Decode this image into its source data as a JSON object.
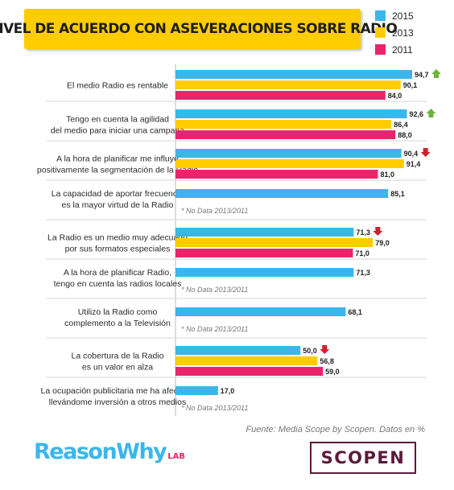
{
  "title": "NIVEL DE ACUERDO CON ASEVERACIONES SOBRE RADIO",
  "legend": [
    {
      "label": "2015",
      "color": "#3BB6EA"
    },
    {
      "label": "2013",
      "color": "#FFCC00"
    },
    {
      "label": "2011",
      "color": "#E8256A"
    }
  ],
  "source": "Fuente: Media Scope by Scopen. Datos en %",
  "no_data_note": "* No Data 2013/2011",
  "logos": {
    "reasonwhy": "ReasonWhy",
    "reasonwhy_sub": "LAB",
    "scopen": "SCOPEN"
  },
  "chart_data": {
    "type": "bar",
    "orientation": "horizontal",
    "title": "NIVEL DE ACUERDO CON ASEVERACIONES SOBRE RADIO",
    "xlim": [
      0,
      100
    ],
    "categories": [
      [
        "El medio Radio es rentable"
      ],
      [
        "Tengo en cuenta la agilidad",
        "del medio para iniciar una campaña"
      ],
      [
        "A la hora de planificar me influye",
        "positivamente la segmentación de la Radio"
      ],
      [
        "La capacidad de aportar frecuencia",
        "es la mayor virtud de la Radio"
      ],
      [
        "La Radio es un medio muy adecuado",
        "por sus formatos especiales"
      ],
      [
        "A la hora de planificar Radio,",
        "tengo en cuenta las radios locales"
      ],
      [
        "Utilizo la Radio como",
        "complemento a la Televisión"
      ],
      [
        "La cobertura de la Radio",
        "es un valor en alza"
      ],
      [
        "La ocupación publicitaria me ha afectado",
        "llevándome inversión a otros medios"
      ]
    ],
    "series": [
      {
        "name": "2015",
        "color": "#3BB6EA",
        "values": [
          94.7,
          92.6,
          90.4,
          85.1,
          71.3,
          71.3,
          68.1,
          50.0,
          17.0
        ],
        "labels": [
          "94,7",
          "92,6",
          "90,4",
          "85,1",
          "71,3",
          "71,3",
          "68,1",
          "50,0",
          "17,0"
        ]
      },
      {
        "name": "2013",
        "color": "#FFCC00",
        "values": [
          90.1,
          86.4,
          91.4,
          null,
          79.0,
          null,
          null,
          56.8,
          null
        ],
        "labels": [
          "90,1",
          "86,4",
          "91,4",
          null,
          "79,0",
          null,
          null,
          "56,8",
          null
        ]
      },
      {
        "name": "2011",
        "color": "#E8256A",
        "values": [
          84.0,
          88.0,
          81.0,
          null,
          71.0,
          null,
          null,
          59.0,
          null
        ],
        "labels": [
          "84,0",
          "88,0",
          "81,0",
          null,
          "71,0",
          null,
          null,
          "59,0",
          null
        ]
      }
    ],
    "trend": [
      "up",
      "up",
      "down",
      null,
      "down",
      null,
      null,
      "down",
      null
    ],
    "trend_colors": {
      "up": "#6CB33F",
      "down": "#D0202E"
    }
  }
}
